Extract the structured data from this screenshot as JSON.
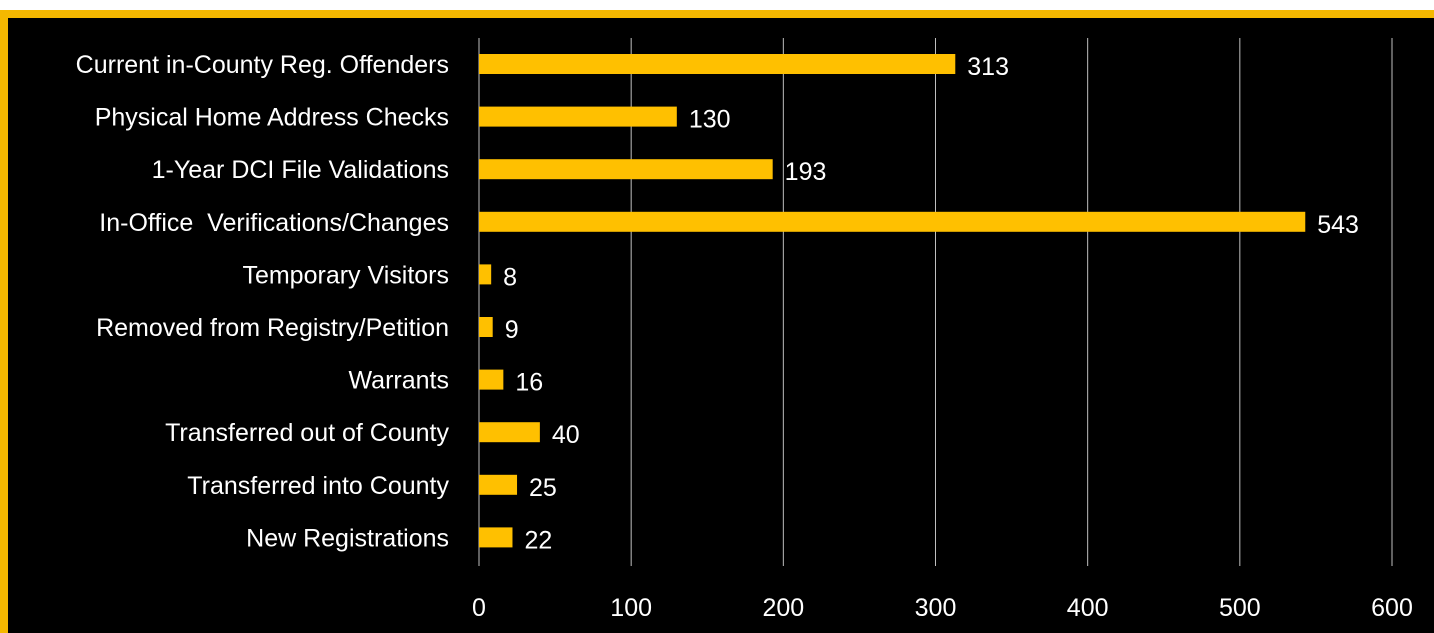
{
  "chart_data": {
    "type": "bar",
    "orientation": "horizontal",
    "title": "",
    "xlabel": "",
    "ylabel": "",
    "categories": [
      "Current in-County Reg. Offenders",
      "Physical Home Address Checks",
      "1-Year DCI File Validations",
      "In-Office  Verifications/Changes",
      "Temporary Visitors",
      "Removed from Registry/Petition",
      "Warrants",
      "Transferred out of County",
      "Transferred into County",
      "New Registrations"
    ],
    "values": [
      313,
      130,
      193,
      543,
      8,
      9,
      16,
      40,
      25,
      22
    ],
    "xlim": [
      0,
      600
    ],
    "xticks": [
      "0",
      "100",
      "200",
      "300",
      "400",
      "500",
      "600"
    ],
    "grid": true,
    "legend": "none",
    "colors": {
      "bar": "#FFC000",
      "background": "#000000",
      "border": "#F5B800",
      "gridline": "#BFBFBF",
      "text": "#FFFFFF"
    }
  }
}
